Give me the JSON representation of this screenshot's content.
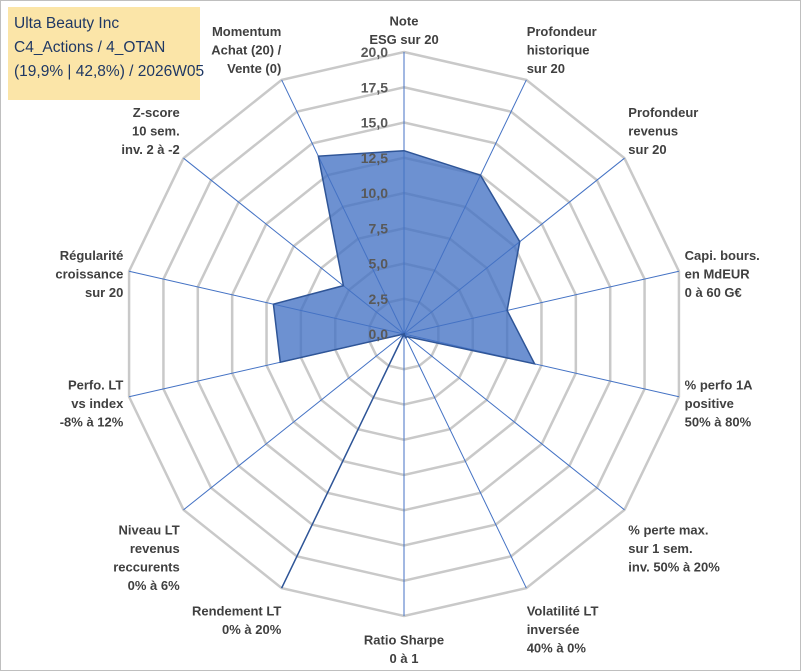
{
  "title_box": {
    "line1": "Ulta Beauty Inc",
    "line2": "C4_Actions / 4_OTAN",
    "line3": "(19,9% | 42,8%) / 2026W05"
  },
  "chart_data": {
    "type": "radar",
    "title": "Ulta Beauty Inc",
    "subtitle": "C4_Actions / 4_OTAN (19,9% | 42,8%) / 2026W05",
    "rmin": 0,
    "rmax": 20,
    "ticks": [
      "0,0",
      "2,5",
      "5,0",
      "7,5",
      "10,0",
      "12,5",
      "15,0",
      "17,5",
      "20,0"
    ],
    "tick_values": [
      0,
      2.5,
      5,
      7.5,
      10,
      12.5,
      15,
      17.5,
      20
    ],
    "grid": true,
    "axes": [
      {
        "label": [
          "Note",
          "ESG sur 20"
        ],
        "value": 13
      },
      {
        "label": [
          "Profondeur",
          "historique",
          "sur 20"
        ],
        "value": 12.5
      },
      {
        "label": [
          "Profondeur",
          "revenus",
          "sur 20"
        ],
        "value": 10.5
      },
      {
        "label": [
          "Capi. bours.",
          "en MdEUR",
          "0 à 60 G€"
        ],
        "value": 7.5
      },
      {
        "label": [
          "% perfo 1A",
          "positive",
          "50% à 80%"
        ],
        "value": 9.5
      },
      {
        "label": [
          "% perte max.",
          "sur 1 sem.",
          "inv. 50% à 20%"
        ],
        "value": 0.3
      },
      {
        "label": [
          "Volatilité LT",
          "inversée",
          "40% à 0%"
        ],
        "value": 0.3
      },
      {
        "label": [
          "Ratio Sharpe",
          "0 à 1"
        ],
        "value": 0
      },
      {
        "label": [
          "Rendement LT",
          "0% à 20%"
        ],
        "value": 20
      },
      {
        "label": [
          "Niveau LT",
          "revenus",
          "reccurents",
          "0% à 6%"
        ],
        "value": 0
      },
      {
        "label": [
          "Perfo. LT",
          "vs index",
          "-8% à 12%"
        ],
        "value": 9
      },
      {
        "label": [
          "Régularité",
          "croissance",
          "sur 20"
        ],
        "value": 9.5
      },
      {
        "label": [
          "Z-score",
          "10 sem.",
          "inv. 2 à -2"
        ],
        "value": 5.5
      },
      {
        "label": [
          "Momentum",
          "Achat (20) /",
          "Vente (0)"
        ],
        "value": 14
      }
    ],
    "series": [
      {
        "name": "Ulta Beauty Inc",
        "fill": "#4472c4",
        "stroke": "#2f5597"
      }
    ]
  }
}
